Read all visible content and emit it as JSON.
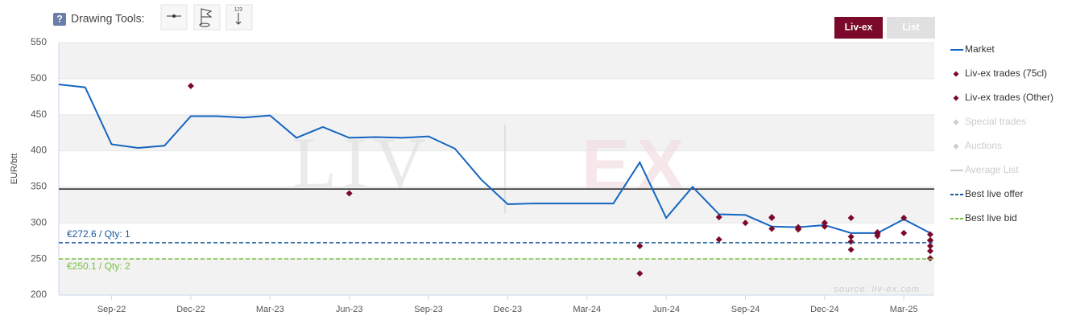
{
  "toolbar": {
    "help": "?",
    "label": "Drawing Tools:",
    "tool_text": "123"
  },
  "view_buttons": [
    "Liv-ex",
    "List"
  ],
  "chart_data": {
    "type": "line",
    "y_label": "EUR/btt",
    "watermark": [
      "LIV",
      "EX"
    ],
    "source": "source: liv-ex.com",
    "xlim": [
      "2022-07",
      "2025-04"
    ],
    "xticks": [
      {
        "value": "2022-09",
        "label": "Sep-22"
      },
      {
        "value": "2022-12",
        "label": "Dec-22"
      },
      {
        "value": "2023-03",
        "label": "Mar-23"
      },
      {
        "value": "2023-06",
        "label": "Jun-23"
      },
      {
        "value": "2023-09",
        "label": "Sep-23"
      },
      {
        "value": "2023-12",
        "label": "Dec-23"
      },
      {
        "value": "2024-03",
        "label": "Mar-24"
      },
      {
        "value": "2024-06",
        "label": "Jun-24"
      },
      {
        "value": "2024-09",
        "label": "Sep-24"
      },
      {
        "value": "2024-12",
        "label": "Dec-24"
      },
      {
        "value": "2025-03",
        "label": "Mar-25"
      }
    ],
    "ylim": [
      200,
      550
    ],
    "yticks": [
      200,
      250,
      300,
      350,
      400,
      450,
      500,
      550
    ],
    "alternate_bands": true,
    "reference_line": 347,
    "series": [
      {
        "name": "Market",
        "type": "line",
        "color": "#1565c0",
        "x": [
          "2022-07",
          "2022-08",
          "2022-09",
          "2022-10",
          "2022-11",
          "2022-12",
          "2023-01",
          "2023-02",
          "2023-03",
          "2023-04",
          "2023-05",
          "2023-06",
          "2023-07",
          "2023-08",
          "2023-09",
          "2023-10",
          "2023-11",
          "2023-12",
          "2024-01",
          "2024-02",
          "2024-03",
          "2024-04",
          "2024-05",
          "2024-06",
          "2024-07",
          "2024-08",
          "2024-09",
          "2024-10",
          "2024-11",
          "2024-12",
          "2025-01",
          "2025-02",
          "2025-03",
          "2025-04"
        ],
        "values": [
          492,
          488,
          409,
          404,
          407,
          448,
          448,
          446,
          449,
          418,
          433,
          418,
          419,
          418,
          420,
          403,
          360,
          326,
          327,
          327,
          327,
          327,
          384,
          307,
          350,
          312,
          311,
          295,
          294,
          297,
          286,
          286,
          305,
          286
        ]
      },
      {
        "name": "Liv-ex trades (75cl)",
        "type": "scatter",
        "color": "#7b0a2a",
        "x": [
          "2022-12",
          "2023-06",
          "2024-05",
          "2024-05",
          "2024-08",
          "2024-08",
          "2024-09",
          "2024-10",
          "2024-10",
          "2024-10",
          "2024-11",
          "2024-11",
          "2024-11",
          "2024-12",
          "2024-12",
          "2024-12",
          "2025-01",
          "2025-01",
          "2025-01",
          "2025-01",
          "2025-02",
          "2025-02",
          "2025-02",
          "2025-02",
          "2025-03",
          "2025-03",
          "2025-04",
          "2025-04",
          "2025-04",
          "2025-04",
          "2025-04",
          "2025-04",
          "2025-04"
        ],
        "values": [
          490,
          341,
          230,
          268,
          308,
          277,
          300,
          308,
          307,
          292,
          293,
          291,
          294,
          300,
          300,
          295,
          307,
          281,
          274,
          263,
          285,
          286,
          282,
          287,
          307,
          286,
          284,
          276,
          276,
          276,
          268,
          261,
          251
        ]
      },
      {
        "name": "Liv-ex trades (Other)",
        "type": "scatter",
        "color": "#7b0a2a",
        "x": [],
        "values": []
      },
      {
        "name": "Special trades",
        "type": "scatter",
        "color": "#cccccc",
        "hidden": true,
        "x": [],
        "values": []
      },
      {
        "name": "Auctions",
        "type": "scatter",
        "color": "#cccccc",
        "hidden": true,
        "x": [],
        "values": []
      },
      {
        "name": "Average List",
        "type": "hline",
        "color": "#cccccc",
        "hidden": true
      },
      {
        "name": "Best live offer",
        "type": "hline",
        "color": "#1a5a99",
        "dashed": true,
        "value": 272.6,
        "label": "€272.6 / Qty: 1"
      },
      {
        "name": "Best live bid",
        "type": "hline",
        "color": "#7ac142",
        "dashed": true,
        "value": 250.1,
        "label": "€250.1 / Qty: 2"
      }
    ]
  }
}
